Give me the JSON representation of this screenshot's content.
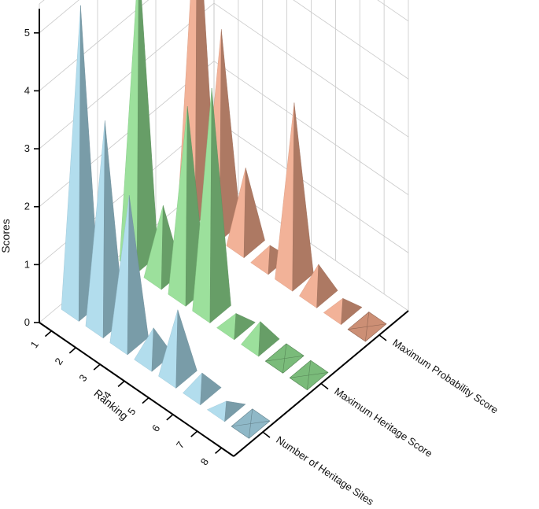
{
  "chart_data": {
    "type": "3d-bar",
    "zlabel": "Scores",
    "xlabel": "Ranking",
    "z_ticks": [
      "0",
      "1",
      "2",
      "3",
      "4",
      "5"
    ],
    "zlim": [
      0,
      5.5
    ],
    "x_ticks": [
      "1",
      "2",
      "3",
      "4",
      "5",
      "6",
      "7",
      "8"
    ],
    "series": [
      {
        "name": "Number of Heritage Sites",
        "color": "#a8d8ea",
        "values": [
          5.2,
          3.5,
          2.5,
          0.5,
          1.1,
          0.3,
          0.1,
          0.0
        ]
      },
      {
        "name": "Maximum Heritage Score",
        "color": "#8fdc8f",
        "values": [
          5.2,
          1.2,
          3.2,
          3.8,
          0.2,
          0.35,
          0.05,
          0.0
        ]
      },
      {
        "name": "Maximum Probability Score",
        "color": "#f0a88a",
        "values": [
          5.6,
          3.4,
          1.3,
          0.25,
          3.0,
          0.5,
          0.2,
          0.0
        ]
      }
    ]
  }
}
